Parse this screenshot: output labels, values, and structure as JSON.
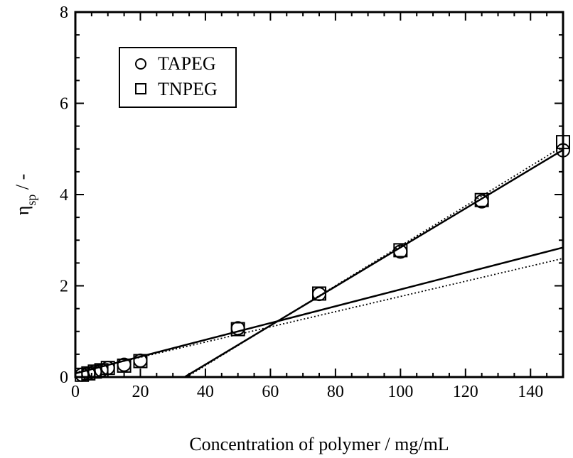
{
  "chart_data": {
    "type": "scatter",
    "xlabel": "Concentration of polymer / mg/mL",
    "ylabel_main": "η",
    "ylabel_sub": "sp",
    "ylabel_suffix": " / -",
    "xlim": [
      0,
      150
    ],
    "ylim": [
      0,
      8
    ],
    "xticks": [
      "0",
      "20",
      "40",
      "60",
      "80",
      "100",
      "120",
      "140"
    ],
    "yticks": [
      "0",
      "2",
      "4",
      "6",
      "8"
    ],
    "grid": false,
    "legend_position": "top-left",
    "series": [
      {
        "name": "TAPEG",
        "marker": "circle",
        "x": [
          2,
          4,
          6,
          8,
          10,
          15,
          20,
          50,
          75,
          100,
          125,
          150
        ],
        "y": [
          0.05,
          0.08,
          0.12,
          0.15,
          0.2,
          0.27,
          0.36,
          1.07,
          1.82,
          2.75,
          3.85,
          4.97
        ]
      },
      {
        "name": "TNPEG",
        "marker": "square",
        "x": [
          2,
          4,
          6,
          8,
          10,
          15,
          20,
          50,
          75,
          100,
          125,
          150
        ],
        "y": [
          0.05,
          0.08,
          0.12,
          0.15,
          0.2,
          0.25,
          0.35,
          1.05,
          1.83,
          2.78,
          3.88,
          5.15
        ]
      }
    ],
    "fit_lines": [
      {
        "style": "solid",
        "x": [
          0,
          150
        ],
        "y": [
          0.08,
          2.84
        ]
      },
      {
        "style": "dotted",
        "x": [
          0,
          150
        ],
        "y": [
          0.1,
          2.6
        ]
      },
      {
        "style": "solid",
        "x": [
          33.6,
          150
        ],
        "y": [
          0,
          4.98
        ]
      },
      {
        "style": "dotted",
        "x": [
          34.2,
          150
        ],
        "y": [
          0,
          5.06
        ]
      }
    ]
  }
}
